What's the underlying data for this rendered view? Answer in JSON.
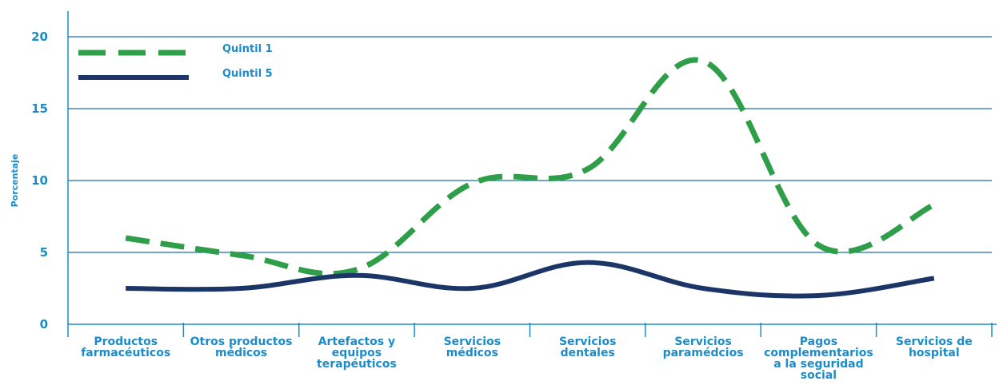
{
  "chart_data": {
    "type": "line",
    "title": "",
    "xlabel": "",
    "ylabel": "Porcentaje",
    "ylim": [
      0,
      20
    ],
    "yticks": [
      0,
      5,
      10,
      15,
      20
    ],
    "grid": true,
    "legend_position": "top-left",
    "categories": [
      "Productos farmacéuticos",
      "Otros productos médicos",
      "Artefactos y equipos terapéuticos",
      "Servicios médicos",
      "Servicios dentales",
      "Servicios paramédcios",
      "Pagos complementarios a la seguridad social",
      "Servicios de hospital"
    ],
    "category_lines": [
      [
        "Productos",
        "farmacéuticos"
      ],
      [
        "Otros productos",
        "médicos"
      ],
      [
        "Artefactos  y",
        "equipos",
        "terapéuticos"
      ],
      [
        "Servicios",
        "médicos"
      ],
      [
        "Servicios",
        "dentales"
      ],
      [
        "Servicios",
        "paramédcios"
      ],
      [
        "Pagos",
        "complementarios",
        "a la seguridad",
        "social"
      ],
      [
        "Servicios de",
        "hospital"
      ]
    ],
    "series": [
      {
        "name": "Quintil 1",
        "color": "#2e9e48",
        "style": "dashed",
        "values": [
          6.0,
          4.8,
          3.8,
          9.8,
          10.8,
          18.3,
          5.5,
          8.3
        ]
      },
      {
        "name": "Quintil 5",
        "color": "#1b3566",
        "style": "solid",
        "values": [
          2.5,
          2.5,
          3.4,
          2.5,
          4.3,
          2.5,
          2.0,
          3.2
        ]
      }
    ],
    "colors": {
      "axis": "#1b8cc8",
      "gridline": "#1b6fa8",
      "text": "#1b8cc8"
    }
  }
}
